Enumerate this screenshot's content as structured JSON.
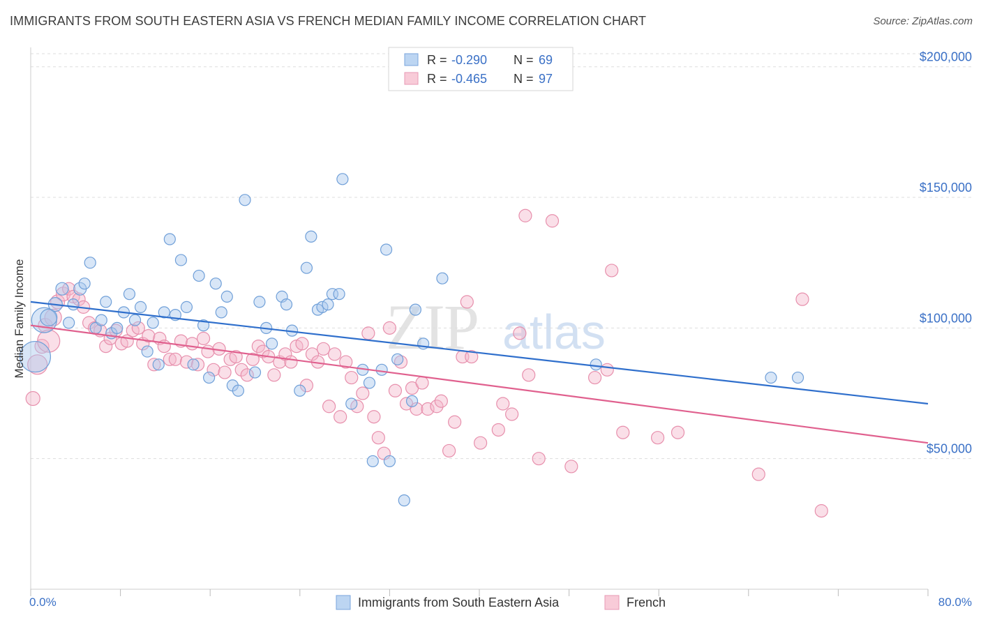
{
  "title": "IMMIGRANTS FROM SOUTH EASTERN ASIA VS FRENCH MEDIAN FAMILY INCOME CORRELATION CHART",
  "source": "Source: ZipAtlas.com",
  "watermark": {
    "zip": "ZIP",
    "atlas": "atlas"
  },
  "colors": {
    "blue_fill": "#a9c8ee",
    "blue_stroke": "#6f9fd8",
    "blue_line": "#2f6fcc",
    "pink_fill": "#f5b8cb",
    "pink_stroke": "#e78fac",
    "pink_line": "#e0608e",
    "axis_text": "#3a70c6",
    "grid": "#dddddd"
  },
  "legend": {
    "entries": [
      {
        "r_label": "R = ",
        "r_value": "-0.290",
        "n_label": "N = ",
        "n_value": "69"
      },
      {
        "r_label": "R = ",
        "r_value": "-0.465",
        "n_label": "N = ",
        "n_value": "97"
      }
    ]
  },
  "chart_data": {
    "type": "scatter",
    "xlabel": "",
    "ylabel": "Median Family Income",
    "xlim": [
      0,
      80
    ],
    "ylim": [
      0,
      205000
    ],
    "x_tick_labels": {
      "min": "0.0%",
      "max": "80.0%"
    },
    "y_ticks": [
      50000,
      100000,
      150000,
      200000
    ],
    "y_tick_labels": [
      "$50,000",
      "$100,000",
      "$150,000",
      "$200,000"
    ],
    "grid": true,
    "legend_position": "top-center",
    "series": [
      {
        "name": "Immigrants from South Eastern Asia",
        "r": -0.29,
        "n": 69,
        "trend": {
          "x0": 0,
          "y0": 110000,
          "x1": 80,
          "y1": 71000
        },
        "points": [
          [
            0.4,
            89000,
            22
          ],
          [
            1.2,
            103000,
            18
          ],
          [
            1.6,
            104000,
            12
          ],
          [
            2.2,
            109000,
            10
          ],
          [
            2.8,
            115000,
            9
          ],
          [
            3.4,
            102000,
            8
          ],
          [
            3.8,
            109000,
            8
          ],
          [
            4.4,
            115000,
            9
          ],
          [
            4.8,
            117000,
            8
          ],
          [
            5.3,
            125000,
            8
          ],
          [
            5.8,
            100000,
            8
          ],
          [
            6.3,
            103000,
            8
          ],
          [
            6.7,
            110000,
            8
          ],
          [
            7.2,
            98000,
            8
          ],
          [
            7.7,
            100000,
            8
          ],
          [
            8.3,
            106000,
            8
          ],
          [
            8.8,
            113000,
            8
          ],
          [
            9.3,
            103000,
            8
          ],
          [
            9.8,
            108000,
            8
          ],
          [
            10.4,
            91000,
            8
          ],
          [
            10.9,
            102000,
            8
          ],
          [
            11.4,
            86000,
            8
          ],
          [
            11.9,
            106000,
            8
          ],
          [
            12.4,
            134000,
            8
          ],
          [
            12.9,
            105000,
            8
          ],
          [
            13.4,
            126000,
            8
          ],
          [
            13.9,
            108000,
            8
          ],
          [
            14.5,
            86000,
            8
          ],
          [
            15.0,
            120000,
            8
          ],
          [
            15.4,
            101000,
            8
          ],
          [
            15.9,
            81000,
            8
          ],
          [
            16.5,
            117000,
            8
          ],
          [
            17.0,
            106000,
            8
          ],
          [
            17.5,
            112000,
            8
          ],
          [
            18.0,
            78000,
            8
          ],
          [
            18.5,
            76000,
            8
          ],
          [
            19.1,
            149000,
            8
          ],
          [
            20.0,
            83000,
            8
          ],
          [
            20.4,
            110000,
            8
          ],
          [
            21.0,
            100000,
            8
          ],
          [
            21.5,
            94000,
            8
          ],
          [
            22.4,
            112000,
            8
          ],
          [
            22.8,
            109000,
            8
          ],
          [
            23.3,
            99000,
            8
          ],
          [
            24.0,
            76000,
            8
          ],
          [
            24.6,
            123000,
            8
          ],
          [
            25.0,
            135000,
            8
          ],
          [
            25.6,
            107000,
            8
          ],
          [
            26.0,
            108000,
            8
          ],
          [
            26.5,
            109000,
            8
          ],
          [
            26.9,
            113000,
            8
          ],
          [
            27.5,
            113000,
            8
          ],
          [
            27.8,
            157000,
            8
          ],
          [
            28.6,
            71000,
            8
          ],
          [
            29.6,
            84000,
            8
          ],
          [
            30.2,
            79000,
            8
          ],
          [
            30.5,
            49000,
            8
          ],
          [
            31.3,
            84000,
            8
          ],
          [
            31.7,
            130000,
            8
          ],
          [
            32.0,
            49000,
            8
          ],
          [
            32.7,
            88000,
            8
          ],
          [
            33.3,
            34000,
            8
          ],
          [
            34.0,
            72000,
            8
          ],
          [
            34.3,
            107000,
            8
          ],
          [
            35.0,
            94000,
            8
          ],
          [
            36.7,
            119000,
            8
          ],
          [
            50.4,
            86000,
            8
          ],
          [
            66.0,
            81000,
            8
          ],
          [
            68.4,
            81000,
            8
          ]
        ]
      },
      {
        "name": "French",
        "r": -0.465,
        "n": 97,
        "trend": {
          "x0": 0,
          "y0": 101000,
          "x1": 80,
          "y1": 56000
        },
        "points": [
          [
            0.2,
            73000,
            10
          ],
          [
            0.6,
            86000,
            14
          ],
          [
            1.0,
            93000,
            10
          ],
          [
            1.3,
            101000,
            10
          ],
          [
            1.6,
            95000,
            16
          ],
          [
            2.0,
            104000,
            12
          ],
          [
            2.4,
            110000,
            10
          ],
          [
            2.9,
            113000,
            10
          ],
          [
            3.4,
            115000,
            9
          ],
          [
            3.8,
            112000,
            9
          ],
          [
            4.3,
            111000,
            9
          ],
          [
            4.7,
            108000,
            9
          ],
          [
            5.2,
            102000,
            9
          ],
          [
            5.7,
            100000,
            9
          ],
          [
            6.2,
            99000,
            9
          ],
          [
            6.7,
            93000,
            9
          ],
          [
            7.1,
            96000,
            9
          ],
          [
            7.6,
            99000,
            9
          ],
          [
            8.1,
            94000,
            9
          ],
          [
            8.6,
            95000,
            9
          ],
          [
            9.1,
            99000,
            9
          ],
          [
            9.6,
            100000,
            9
          ],
          [
            10.0,
            94000,
            9
          ],
          [
            10.5,
            97000,
            9
          ],
          [
            11.0,
            86000,
            9
          ],
          [
            11.5,
            96000,
            9
          ],
          [
            11.9,
            93000,
            9
          ],
          [
            12.4,
            88000,
            9
          ],
          [
            12.9,
            88000,
            9
          ],
          [
            13.4,
            95000,
            9
          ],
          [
            13.9,
            87000,
            9
          ],
          [
            14.4,
            94000,
            9
          ],
          [
            14.9,
            86000,
            9
          ],
          [
            15.4,
            96000,
            9
          ],
          [
            15.8,
            91000,
            9
          ],
          [
            16.3,
            84000,
            9
          ],
          [
            16.8,
            92000,
            9
          ],
          [
            17.3,
            83000,
            9
          ],
          [
            17.8,
            88000,
            9
          ],
          [
            18.3,
            89000,
            9
          ],
          [
            18.8,
            84000,
            9
          ],
          [
            19.3,
            82000,
            9
          ],
          [
            19.8,
            88000,
            9
          ],
          [
            20.3,
            93000,
            9
          ],
          [
            20.7,
            91000,
            9
          ],
          [
            21.2,
            89000,
            9
          ],
          [
            21.7,
            82000,
            9
          ],
          [
            22.2,
            87000,
            9
          ],
          [
            22.7,
            90000,
            9
          ],
          [
            23.2,
            87000,
            9
          ],
          [
            23.7,
            93000,
            9
          ],
          [
            24.2,
            94000,
            9
          ],
          [
            24.6,
            78000,
            9
          ],
          [
            25.1,
            90000,
            9
          ],
          [
            25.6,
            87000,
            9
          ],
          [
            26.1,
            92000,
            9
          ],
          [
            26.6,
            70000,
            9
          ],
          [
            27.1,
            90000,
            9
          ],
          [
            27.6,
            66000,
            9
          ],
          [
            28.1,
            87000,
            9
          ],
          [
            28.6,
            81000,
            9
          ],
          [
            29.1,
            70000,
            9
          ],
          [
            29.6,
            75000,
            9
          ],
          [
            30.1,
            98000,
            9
          ],
          [
            30.6,
            66000,
            9
          ],
          [
            31.0,
            58000,
            9
          ],
          [
            31.5,
            52000,
            9
          ],
          [
            32.0,
            100000,
            9
          ],
          [
            32.5,
            76000,
            9
          ],
          [
            33.0,
            87000,
            9
          ],
          [
            33.5,
            71000,
            9
          ],
          [
            34.0,
            77000,
            9
          ],
          [
            34.4,
            69000,
            9
          ],
          [
            34.9,
            79000,
            9
          ],
          [
            35.4,
            69000,
            9
          ],
          [
            36.2,
            70000,
            9
          ],
          [
            36.6,
            72000,
            9
          ],
          [
            37.3,
            53000,
            9
          ],
          [
            37.8,
            64000,
            9
          ],
          [
            38.5,
            89000,
            9
          ],
          [
            38.9,
            110000,
            9
          ],
          [
            39.3,
            89000,
            9
          ],
          [
            40.1,
            56000,
            9
          ],
          [
            41.7,
            61000,
            9
          ],
          [
            42.1,
            71000,
            9
          ],
          [
            42.9,
            67000,
            9
          ],
          [
            43.6,
            98000,
            9
          ],
          [
            44.1,
            143000,
            9
          ],
          [
            44.4,
            82000,
            9
          ],
          [
            45.3,
            50000,
            9
          ],
          [
            46.5,
            141000,
            9
          ],
          [
            48.2,
            47000,
            9
          ],
          [
            50.3,
            81000,
            9
          ],
          [
            51.4,
            84000,
            9
          ],
          [
            51.8,
            122000,
            9
          ],
          [
            52.8,
            60000,
            9
          ],
          [
            55.9,
            58000,
            9
          ],
          [
            57.7,
            60000,
            9
          ],
          [
            64.9,
            44000,
            9
          ],
          [
            68.8,
            111000,
            9
          ],
          [
            70.5,
            30000,
            9
          ]
        ]
      }
    ]
  }
}
